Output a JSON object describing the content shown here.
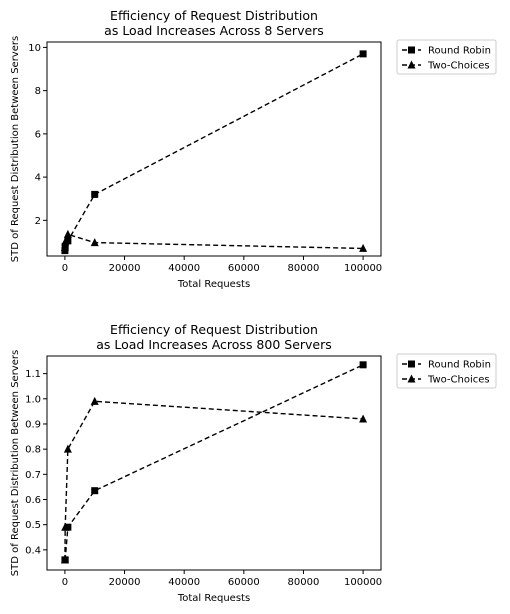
{
  "chart_data": [
    {
      "type": "line",
      "title_lines": [
        "Efficiency of Request Distribution",
        "as Load Increases Across 8 Servers"
      ],
      "xlabel": "Total Requests",
      "ylabel": "STD of Request Distribution Between Servers",
      "x": [
        10,
        100,
        1000,
        10000,
        100000
      ],
      "xlim": [
        -6000,
        106000
      ],
      "ylim": [
        0.35,
        10.25
      ],
      "xticks": [
        0,
        20000,
        40000,
        60000,
        80000,
        100000
      ],
      "yticks": [
        2,
        4,
        6,
        8,
        10
      ],
      "ytick_labels": [
        "2",
        "4",
        "6",
        "8",
        "10"
      ],
      "legend_position": "outside-right-top",
      "series": [
        {
          "name": "Round Robin",
          "marker": "square",
          "color": "#000000",
          "values": [
            0.6,
            0.8,
            1.05,
            3.2,
            9.7
          ]
        },
        {
          "name": "Two-Choices",
          "marker": "triangle",
          "color": "#000000",
          "values": [
            0.75,
            1.0,
            1.35,
            0.97,
            0.7
          ]
        }
      ]
    },
    {
      "type": "line",
      "title_lines": [
        "Efficiency of Request Distribution",
        "as Load Increases Across 800 Servers"
      ],
      "xlabel": "Total Requests",
      "ylabel": "STD of Request Distribution Between Servers",
      "x": [
        10,
        100,
        1000,
        10000,
        100000
      ],
      "xlim": [
        -6000,
        106000
      ],
      "ylim": [
        0.32,
        1.17
      ],
      "xticks": [
        0,
        20000,
        40000,
        60000,
        80000,
        100000
      ],
      "yticks": [
        0.4,
        0.5,
        0.6,
        0.7,
        0.8,
        0.9,
        1.0,
        1.1
      ],
      "ytick_labels": [
        "0.4",
        "0.5",
        "0.6",
        "0.7",
        "0.8",
        "0.9",
        "1.0",
        "1.1"
      ],
      "legend_position": "outside-right-top",
      "series": [
        {
          "name": "Round Robin",
          "marker": "square",
          "color": "#000000",
          "values": [
            0.36,
            0.36,
            0.49,
            0.635,
            1.135
          ]
        },
        {
          "name": "Two-Choices",
          "marker": "triangle",
          "color": "#000000",
          "values": [
            0.36,
            0.49,
            0.8,
            0.99,
            0.92
          ]
        }
      ]
    }
  ]
}
